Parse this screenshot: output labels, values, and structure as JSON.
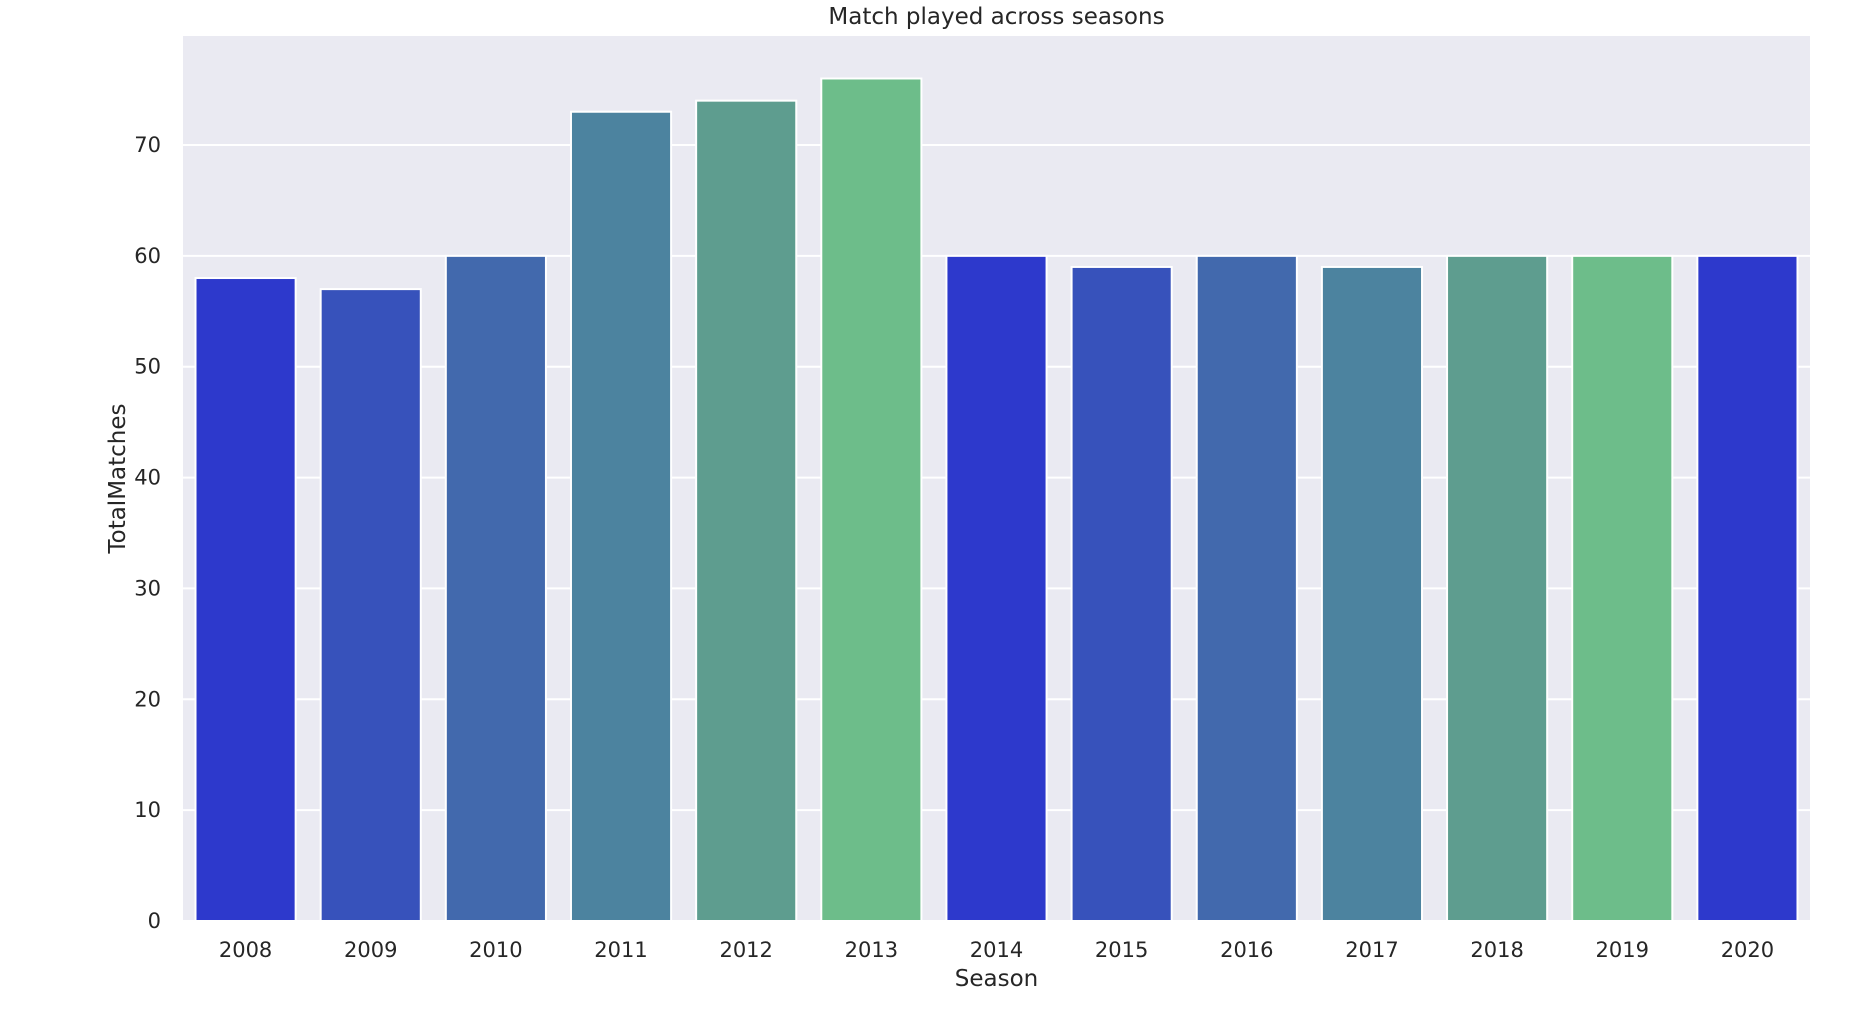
{
  "chart_data": {
    "type": "bar",
    "title": "Match played across seasons",
    "xlabel": "Season",
    "ylabel": "TotalMatches",
    "categories": [
      "2008",
      "2009",
      "2010",
      "2011",
      "2012",
      "2013",
      "2014",
      "2015",
      "2016",
      "2017",
      "2018",
      "2019",
      "2020"
    ],
    "values": [
      58,
      57,
      60,
      73,
      74,
      76,
      60,
      59,
      60,
      59,
      60,
      60,
      60
    ],
    "colors": [
      "#2d39cc",
      "#3752bb",
      "#4269ad",
      "#4c839f",
      "#5e9d8f",
      "#6dbd8a",
      "#2d39cc",
      "#3752bb",
      "#4269ad",
      "#4c839f",
      "#5e9d8f",
      "#6dbd8a",
      "#2d39cc"
    ],
    "ylim": [
      0,
      80
    ],
    "yticks": [
      0,
      10,
      20,
      30,
      40,
      50,
      60,
      70
    ],
    "grid": true,
    "background_color": "#eaeaf2"
  }
}
